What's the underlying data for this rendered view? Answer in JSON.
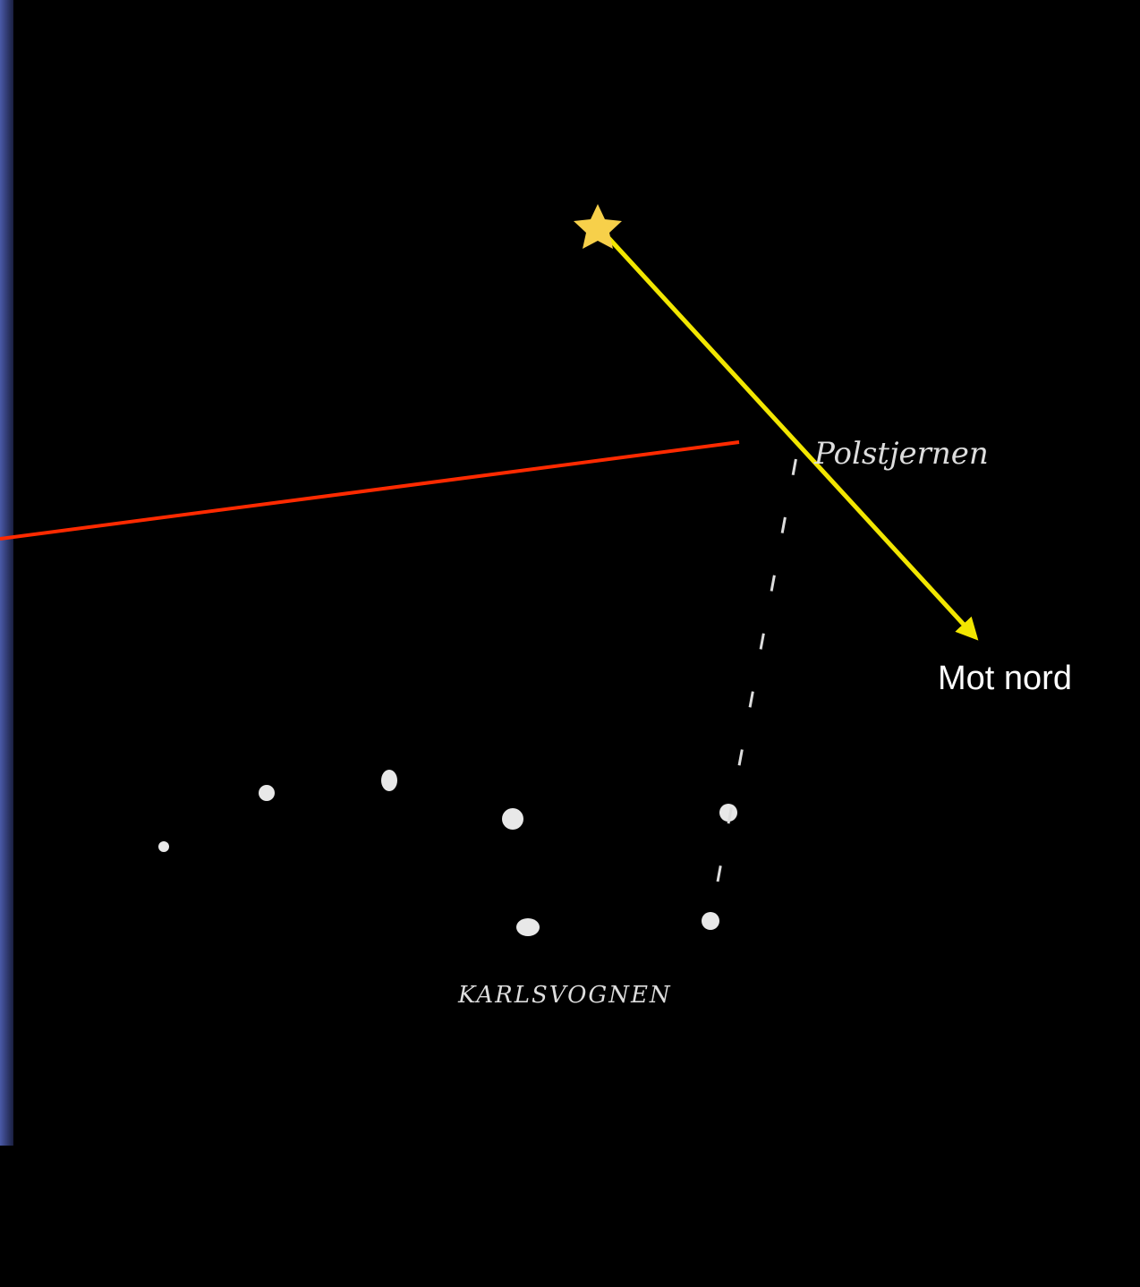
{
  "labels": {
    "polaris": "Polstjernen",
    "constellation": "KARLSVOGNEN",
    "direction": "Mot nord"
  }
}
